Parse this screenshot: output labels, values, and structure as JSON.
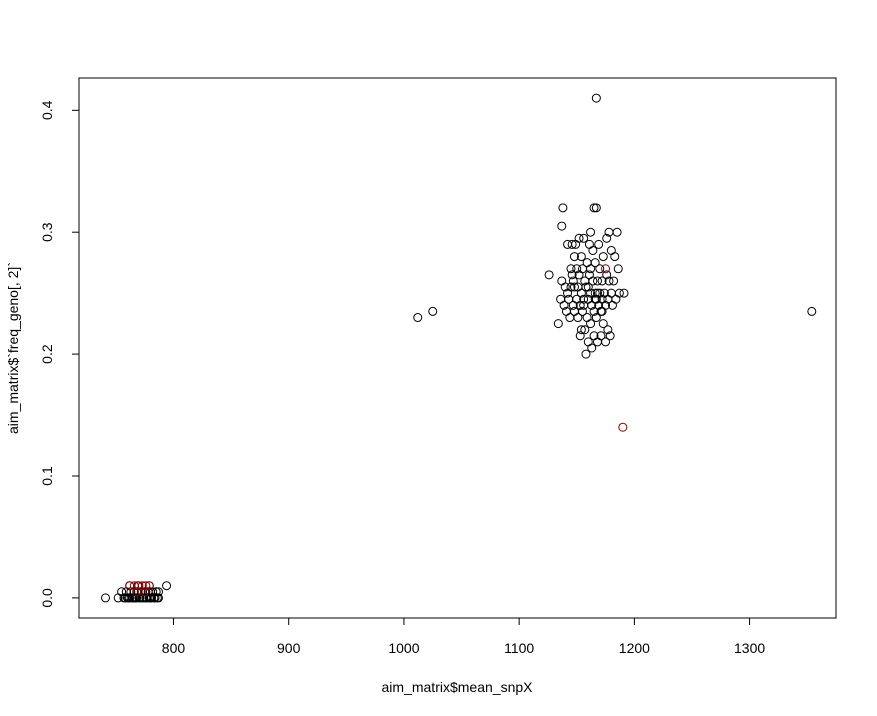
{
  "chart_data": {
    "type": "scatter",
    "title": "",
    "xlabel": "aim_matrix$mean_snpX",
    "ylabel": "aim_matrix$`freq_geno[, 2]`",
    "xlim": [
      718,
      1375
    ],
    "ylim": [
      -0.0165,
      0.4265
    ],
    "x_ticks": [
      800,
      900,
      1000,
      1100,
      1200,
      1300
    ],
    "y_ticks": [
      0.0,
      0.1,
      0.2,
      0.3,
      0.4
    ],
    "x_tick_labels": [
      "800",
      "900",
      "1000",
      "1100",
      "1200",
      "1300"
    ],
    "y_tick_labels": [
      "0.0",
      "0.1",
      "0.2",
      "0.3",
      "0.4"
    ],
    "grid": false,
    "legend": "none",
    "marker": "open-circle",
    "series": [
      {
        "color": "#000000",
        "points": [
          [
            741,
            0
          ],
          [
            752,
            0
          ],
          [
            755,
            0.005
          ],
          [
            757,
            0
          ],
          [
            759,
            0.005
          ],
          [
            760,
            0
          ],
          [
            761,
            0
          ],
          [
            762,
            0
          ],
          [
            763,
            0.005
          ],
          [
            764,
            0
          ],
          [
            765,
            0
          ],
          [
            766,
            0.005
          ],
          [
            767,
            0
          ],
          [
            768,
            0
          ],
          [
            769,
            0.005
          ],
          [
            770,
            0
          ],
          [
            771,
            0
          ],
          [
            772,
            0.005
          ],
          [
            773,
            0
          ],
          [
            774,
            0
          ],
          [
            775,
            0.005
          ],
          [
            776,
            0
          ],
          [
            777,
            0
          ],
          [
            778,
            0.005
          ],
          [
            779,
            0
          ],
          [
            780,
            0
          ],
          [
            781,
            0
          ],
          [
            782,
            0.005
          ],
          [
            783,
            0
          ],
          [
            784,
            0
          ],
          [
            785,
            0.005
          ],
          [
            786,
            0
          ],
          [
            787,
            0
          ],
          [
            758,
            0
          ],
          [
            766,
            0
          ],
          [
            776,
            0.005
          ],
          [
            780,
            0.005
          ],
          [
            787,
            0.005
          ],
          [
            794,
            0.01
          ],
          [
            762,
            0.01
          ],
          [
            769,
            0.01
          ],
          [
            779,
            0.01
          ],
          [
            1012,
            0.23
          ],
          [
            1025,
            0.235
          ],
          [
            1354,
            0.235
          ],
          [
            1167,
            0.41
          ],
          [
            1126,
            0.265
          ],
          [
            1134,
            0.225
          ],
          [
            1136,
            0.245
          ],
          [
            1137,
            0.26
          ],
          [
            1137,
            0.305
          ],
          [
            1138,
            0.32
          ],
          [
            1139,
            0.24
          ],
          [
            1140,
            0.255
          ],
          [
            1141,
            0.235
          ],
          [
            1142,
            0.25
          ],
          [
            1143,
            0.245
          ],
          [
            1144,
            0.23
          ],
          [
            1145,
            0.255
          ],
          [
            1145,
            0.27
          ],
          [
            1146,
            0.29
          ],
          [
            1147,
            0.24
          ],
          [
            1147,
            0.26
          ],
          [
            1148,
            0.235
          ],
          [
            1148,
            0.28
          ],
          [
            1149,
            0.29
          ],
          [
            1150,
            0.245
          ],
          [
            1150,
            0.27
          ],
          [
            1151,
            0.23
          ],
          [
            1151,
            0.255
          ],
          [
            1152,
            0.265
          ],
          [
            1152,
            0.295
          ],
          [
            1153,
            0.24
          ],
          [
            1153,
            0.215
          ],
          [
            1154,
            0.28
          ],
          [
            1154,
            0.25
          ],
          [
            1155,
            0.235
          ],
          [
            1155,
            0.27
          ],
          [
            1156,
            0.245
          ],
          [
            1156,
            0.295
          ],
          [
            1157,
            0.22
          ],
          [
            1157,
            0.26
          ],
          [
            1158,
            0.2
          ],
          [
            1158,
            0.255
          ],
          [
            1159,
            0.23
          ],
          [
            1159,
            0.275
          ],
          [
            1160,
            0.245
          ],
          [
            1160,
            0.21
          ],
          [
            1161,
            0.265
          ],
          [
            1161,
            0.29
          ],
          [
            1162,
            0.25
          ],
          [
            1162,
            0.3
          ],
          [
            1162,
            0.225
          ],
          [
            1163,
            0.24
          ],
          [
            1163,
            0.205
          ],
          [
            1164,
            0.26
          ],
          [
            1164,
            0.285
          ],
          [
            1165,
            0.235
          ],
          [
            1165,
            0.32
          ],
          [
            1165,
            0.215
          ],
          [
            1166,
            0.25
          ],
          [
            1166,
            0.275
          ],
          [
            1167,
            0.245
          ],
          [
            1167,
            0.32
          ],
          [
            1167,
            0.23
          ],
          [
            1168,
            0.26
          ],
          [
            1168,
            0.21
          ],
          [
            1169,
            0.24
          ],
          [
            1169,
            0.29
          ],
          [
            1170,
            0.25
          ],
          [
            1170,
            0.27
          ],
          [
            1171,
            0.235
          ],
          [
            1171,
            0.215
          ],
          [
            1172,
            0.245
          ],
          [
            1172,
            0.26
          ],
          [
            1173,
            0.225
          ],
          [
            1173,
            0.28
          ],
          [
            1174,
            0.25
          ],
          [
            1175,
            0.24
          ],
          [
            1175,
            0.21
          ],
          [
            1176,
            0.265
          ],
          [
            1176,
            0.295
          ],
          [
            1177,
            0.22
          ],
          [
            1177,
            0.245
          ],
          [
            1178,
            0.3
          ],
          [
            1178,
            0.26
          ],
          [
            1179,
            0.215
          ],
          [
            1180,
            0.25
          ],
          [
            1180,
            0.285
          ],
          [
            1181,
            0.24
          ],
          [
            1182,
            0.26
          ],
          [
            1183,
            0.28
          ],
          [
            1184,
            0.245
          ],
          [
            1185,
            0.3
          ],
          [
            1186,
            0.27
          ],
          [
            1187,
            0.25
          ],
          [
            1191,
            0.25
          ],
          [
            1142,
            0.29
          ],
          [
            1148,
            0.255
          ],
          [
            1156,
            0.24
          ],
          [
            1162,
            0.27
          ],
          [
            1168,
            0.25
          ],
          [
            1172,
            0.235
          ],
          [
            1166,
            0.245
          ],
          [
            1160,
            0.255
          ],
          [
            1154,
            0.22
          ],
          [
            1146,
            0.265
          ]
        ]
      },
      {
        "color": "#8b0000",
        "points": [
          [
            762,
            0.01
          ],
          [
            766,
            0.01
          ],
          [
            770,
            0.01
          ],
          [
            773,
            0.01
          ],
          [
            776,
            0.01
          ],
          [
            779,
            0.01
          ],
          [
            768,
            0.005
          ],
          [
            775,
            0.005
          ],
          [
            1175,
            0.27
          ],
          [
            1190,
            0.14
          ]
        ]
      }
    ]
  }
}
